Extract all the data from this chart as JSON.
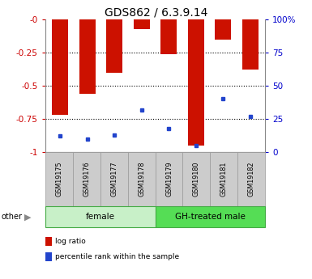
{
  "title": "GDS862 / 6.3.9.14",
  "samples": [
    "GSM19175",
    "GSM19176",
    "GSM19177",
    "GSM19178",
    "GSM19179",
    "GSM19180",
    "GSM19181",
    "GSM19182"
  ],
  "log_ratio": [
    -0.72,
    -0.56,
    -0.4,
    -0.07,
    -0.26,
    -0.95,
    -0.15,
    -0.38
  ],
  "percentile_rank": [
    12,
    10,
    13,
    32,
    18,
    5,
    40,
    27
  ],
  "groups": [
    {
      "label": "female",
      "start": 0,
      "end": 4,
      "color": "#c8f0c8"
    },
    {
      "label": "GH-treated male",
      "start": 4,
      "end": 8,
      "color": "#55dd55"
    }
  ],
  "bar_color": "#cc1100",
  "blue_color": "#2244cc",
  "left_yaxis_color": "#cc0000",
  "right_yaxis_color": "#0000cc",
  "yticks_left": [
    0,
    -0.25,
    -0.5,
    -0.75,
    -1.0
  ],
  "ytick_labels_left": [
    "-0",
    "-0.25",
    "-0.5",
    "-0.75",
    "-1"
  ],
  "yticks_right": [
    0,
    25,
    50,
    75,
    100
  ],
  "ytick_labels_right": [
    "0",
    "25",
    "50",
    "75",
    "100%"
  ],
  "sample_box_color": "#cccccc",
  "legend_items": [
    {
      "color": "#cc1100",
      "label": "log ratio"
    },
    {
      "color": "#2244cc",
      "label": "percentile rank within the sample"
    }
  ],
  "bar_width": 0.6
}
